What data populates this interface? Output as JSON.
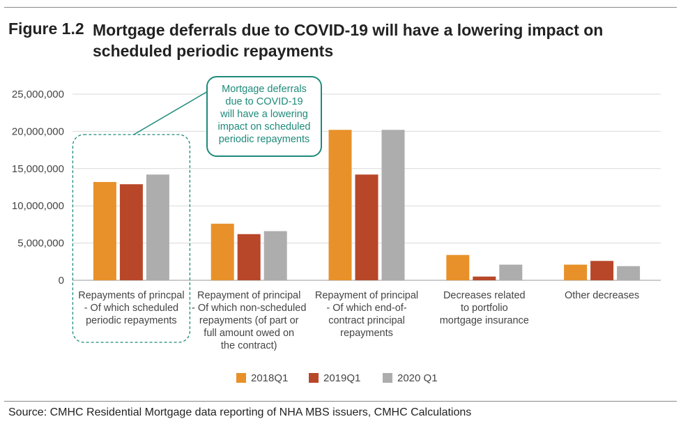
{
  "figure_label": "Figure 1.2",
  "figure_title": "Mortgage deferrals due to COVID-19 will have a lowering impact on scheduled periodic repayments",
  "source": "Source: CMHC Residential Mortgage data reporting of NHA MBS issuers, CMHC Calculations",
  "colors": {
    "series": [
      "#e8912a",
      "#b8472a",
      "#adadad"
    ],
    "annotation": "#1e8a7a",
    "grid": "#d9d9d9"
  },
  "chart_data": {
    "type": "bar",
    "title": "Mortgage deferrals due to COVID-19 will have a lowering impact on scheduled periodic repayments",
    "ylim": [
      0,
      25000000
    ],
    "y_ticks": [
      0,
      5000000,
      10000000,
      15000000,
      20000000,
      25000000
    ],
    "y_tick_labels": [
      "0",
      "5,000,000",
      "10,000,000",
      "15,000,000",
      "20,000,000",
      "25,000,000"
    ],
    "grid": true,
    "legend_position": "bottom",
    "categories": [
      [
        "Repayments of princpal",
        "- Of which scheduled",
        "periodic repayments"
      ],
      [
        "Repayment of principal",
        "- Of which non-scheduled",
        "repayments (of part or",
        "full amount owed on",
        "the contract)"
      ],
      [
        "Repayment of principal",
        "- Of which end-of-",
        "contract principal",
        "repayments"
      ],
      [
        "Decreases related",
        "to portfolio",
        "mortgage insurance"
      ],
      [
        "Other decreases"
      ]
    ],
    "series": [
      {
        "name": "2018Q1",
        "values": [
          13200000,
          7600000,
          20200000,
          3400000,
          2100000
        ]
      },
      {
        "name": "2019Q1",
        "values": [
          12900000,
          6200000,
          14200000,
          500000,
          2600000
        ]
      },
      {
        "name": "2020 Q1",
        "values": [
          14200000,
          6600000,
          20200000,
          2100000,
          1900000
        ]
      }
    ],
    "annotation": {
      "category_index": 0,
      "lines": [
        "Mortgage deferrals",
        "due to COVID-19",
        "will have a lowering",
        "impact on scheduled",
        "periodic repayments"
      ]
    }
  }
}
